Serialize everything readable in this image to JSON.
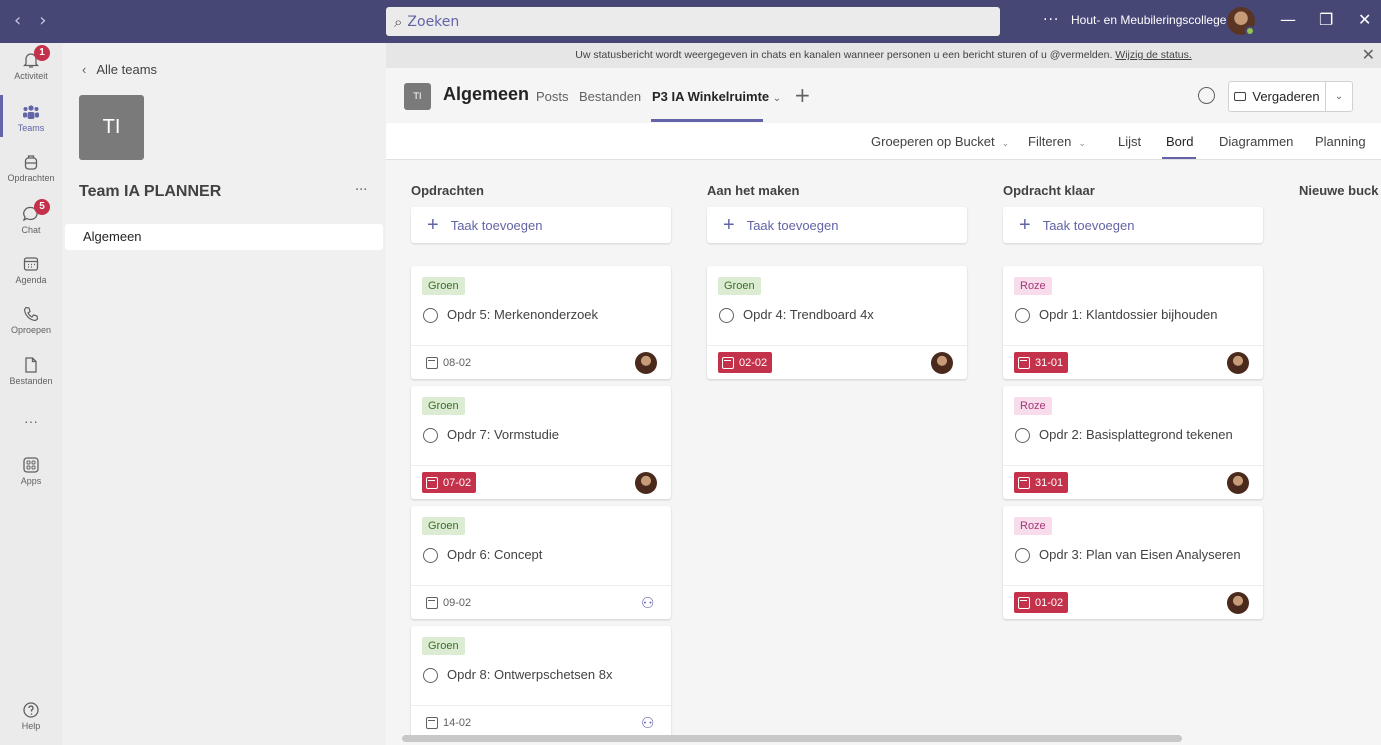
{
  "titlebar": {
    "back_icon": "‹",
    "forward_icon": "›",
    "search_placeholder": "Zoeken",
    "more": "···",
    "org_name": "Hout- en Meubileringscollege",
    "min_icon": "—",
    "max_icon": "❐",
    "close_icon": "✕"
  },
  "rail": {
    "activity": "Activiteit",
    "activity_badge": "1",
    "teams": "Teams",
    "assignments": "Opdrachten",
    "chat": "Chat",
    "chat_badge": "5",
    "calendar": "Agenda",
    "calls": "Oproepen",
    "files": "Bestanden",
    "more": "···",
    "apps": "Apps",
    "help": "Help"
  },
  "teampanel": {
    "back": "Alle teams",
    "team_initials": "TI",
    "team_name": "Team IA PLANNER",
    "more": "···",
    "channel": "Algemeen"
  },
  "banner": {
    "text": "Uw statusbericht wordt weergegeven in chats en kanalen wanneer personen u een bericht sturen of u @vermelden.",
    "link": "Wijzig de status."
  },
  "channel": {
    "initials": "TI",
    "name": "Algemeen",
    "tabs": [
      "Posts",
      "Bestanden",
      "P3 IA Winkelruimte"
    ],
    "active_caret": "⌄",
    "add": "+",
    "meet": "Vergaderen",
    "meet_caret": "⌄"
  },
  "toolbar": {
    "group_by": "Groeperen op Bucket",
    "filter": "Filteren",
    "caret": "⌄",
    "views": [
      "Lijst",
      "Bord",
      "Diagrammen",
      "Planning"
    ]
  },
  "board": {
    "add_task": "Taak toevoegen",
    "buckets": [
      {
        "title": "Opdrachten",
        "cards": [
          {
            "label": "Groen",
            "title": "Opdr 5: Merkenonderzoek",
            "date": "08-02"
          },
          {
            "label": "Groen",
            "title": "Opdr 7: Vormstudie",
            "date": "07-02"
          },
          {
            "label": "Groen",
            "title": "Opdr 6: Concept",
            "date": "09-02"
          },
          {
            "label": "Groen",
            "title": "Opdr 8: Ontwerpschetsen 8x",
            "date": "14-02"
          }
        ]
      },
      {
        "title": "Aan het maken",
        "cards": [
          {
            "label": "Groen",
            "title": "Opdr 4: Trendboard 4x",
            "date": "02-02"
          }
        ]
      },
      {
        "title": "Opdracht klaar",
        "cards": [
          {
            "label": "Roze",
            "title": "Opdr 1: Klantdossier bijhouden",
            "date": "31-01"
          },
          {
            "label": "Roze",
            "title": "Opdr 2: Basisplattegrond tekenen",
            "date": "31-01"
          },
          {
            "label": "Roze",
            "title": "Opdr 3: Plan van Eisen Analyseren",
            "date": "01-02"
          }
        ]
      },
      {
        "title": "Nieuwe buck",
        "cards": []
      }
    ]
  },
  "colors": {
    "brand": "#6264a7",
    "titlebar": "#464775",
    "overdue": "#c4314b",
    "label_green": "#dbecd3",
    "label_pink": "#f8dcec"
  }
}
